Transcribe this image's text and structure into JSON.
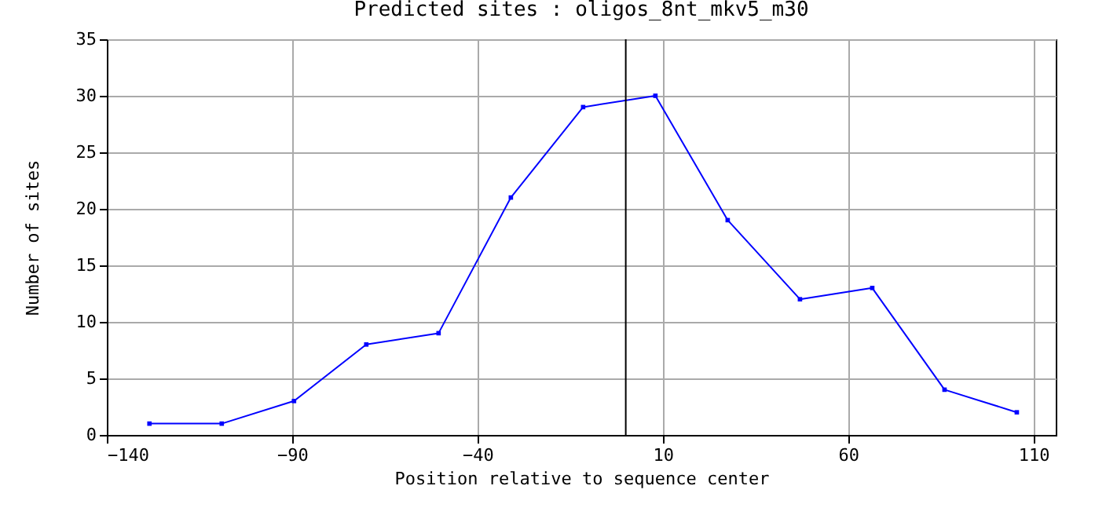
{
  "chart_data": {
    "type": "line",
    "title": "Predicted sites : oligos_8nt_mkv5_m30",
    "xlabel": "Position relative to sequence center",
    "ylabel": "Number of sites",
    "x": [
      -128.5,
      -109,
      -89.5,
      -70,
      -50.5,
      -31,
      -11.5,
      8,
      27.5,
      47,
      66.5,
      86,
      105.5
    ],
    "series": [
      {
        "color": "#0000ff",
        "values": [
          1,
          1,
          3,
          8,
          9,
          21,
          29,
          30,
          19,
          12,
          13,
          4,
          2
        ]
      }
    ],
    "xlim": [
      -140,
      116
    ],
    "xticks": [
      -140,
      -90,
      -40,
      10,
      60,
      110
    ],
    "ylim": [
      0,
      35
    ],
    "yticks": [
      0,
      5,
      10,
      15,
      20,
      25,
      30,
      35
    ],
    "grid": true,
    "marker": "square",
    "line_style": "solid",
    "ref_lines": [
      {
        "axis": "x",
        "value": 0,
        "color": "#000000"
      }
    ]
  }
}
